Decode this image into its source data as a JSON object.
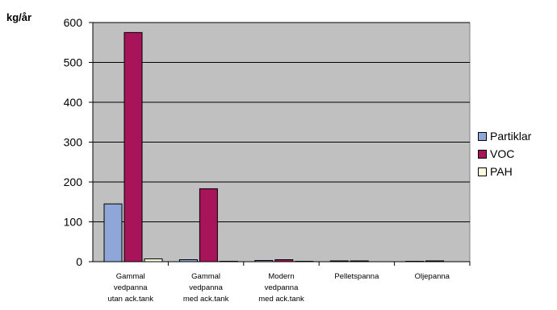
{
  "chart_data": {
    "type": "bar",
    "ylabel": "kg/år",
    "ylim": [
      0,
      600
    ],
    "yticks": [
      0,
      100,
      200,
      300,
      400,
      500,
      600
    ],
    "grid": true,
    "legend_position": "right",
    "categories": [
      [
        "Gammal",
        "vedpanna",
        "utan ack.tank"
      ],
      [
        "Gammal",
        "vedpanna",
        "med ack.tank"
      ],
      [
        "Modern",
        "vedpanna",
        "med ack.tank"
      ],
      [
        "Pelletspanna"
      ],
      [
        "Oljepanna"
      ]
    ],
    "series": [
      {
        "name": "Partiklar",
        "color": "#8ea7d8",
        "values": [
          145,
          5,
          3,
          2,
          1
        ]
      },
      {
        "name": "VOC",
        "color": "#a8145a",
        "values": [
          575,
          183,
          5,
          2,
          2
        ]
      },
      {
        "name": "PAH",
        "color": "#ffffe0",
        "values": [
          7,
          1,
          1,
          0,
          0
        ]
      }
    ],
    "plot_background": "#c0c0c0"
  }
}
